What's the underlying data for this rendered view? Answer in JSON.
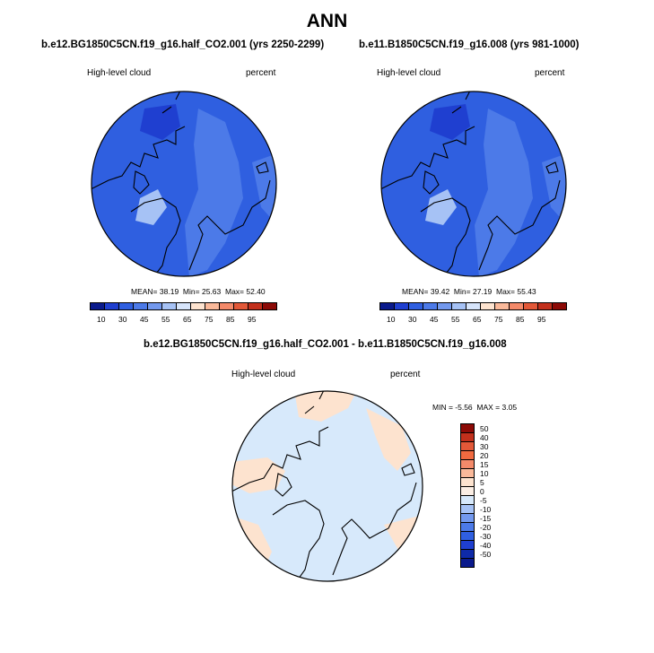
{
  "title": "ANN",
  "panels": [
    {
      "case": "b.e12.BG1850C5CN.f19_g16.half_CO2.001 (yrs 2250-2299)",
      "variable": "High-level cloud",
      "units": "percent",
      "stats": {
        "mean_label": "MEAN=",
        "mean": "38.19",
        "min_label": "Min=",
        "min": "25.63",
        "max_label": "Max=",
        "max": "52.40"
      },
      "colorbar": {
        "labels": [
          "10",
          "30",
          "45",
          "55",
          "65",
          "75",
          "85",
          "95"
        ],
        "colors": [
          "#0a1a8c",
          "#1f3fd0",
          "#2f5fe0",
          "#4c7ae8",
          "#7399ee",
          "#a6c2f5",
          "#d7e5fb",
          "#fde3cf",
          "#fab99a",
          "#f48a6a",
          "#e25838",
          "#c2301c",
          "#8c0a06"
        ]
      },
      "map": {
        "base": "#2f5fe0",
        "lighter": "#4c7ae8",
        "lightest": "#a6c2f5"
      }
    },
    {
      "case": "b.e11.B1850C5CN.f19_g16.008 (yrs 981-1000)",
      "variable": "High-level cloud",
      "units": "percent",
      "stats": {
        "mean_label": "MEAN=",
        "mean": "39.42",
        "min_label": "Min=",
        "min": "27.19",
        "max_label": "Max=",
        "max": "55.43"
      },
      "colorbar": {
        "labels": [
          "10",
          "30",
          "45",
          "55",
          "65",
          "75",
          "85",
          "95"
        ],
        "colors": [
          "#0a1a8c",
          "#1f3fd0",
          "#2f5fe0",
          "#4c7ae8",
          "#7399ee",
          "#a6c2f5",
          "#d7e5fb",
          "#fde3cf",
          "#fab99a",
          "#f48a6a",
          "#e25838",
          "#c2301c",
          "#8c0a06"
        ]
      },
      "map": {
        "base": "#2f5fe0",
        "lighter": "#4c7ae8",
        "lightest": "#a6c2f5"
      }
    }
  ],
  "difference": {
    "case": "b.e12.BG1850C5CN.f19_g16.half_CO2.001 - b.e11.B1850C5CN.f19_g16.008",
    "variable": "High-level cloud",
    "units": "percent",
    "stats": {
      "min_label": "MIN =",
      "min": "-5.56",
      "max_label": "MAX =",
      "max": "3.05"
    },
    "colorbar": {
      "labels": [
        "50",
        "40",
        "30",
        "20",
        "15",
        "10",
        "5",
        "0",
        "-5",
        "-10",
        "-15",
        "-20",
        "-30",
        "-40",
        "-50"
      ],
      "colors": [
        "#8c0a06",
        "#c2301c",
        "#e25838",
        "#f06a40",
        "#f48a6a",
        "#fab99a",
        "#fde3cf",
        "#fbeee4",
        "#d7e9fb",
        "#a6c2f5",
        "#7399ee",
        "#4c7ae8",
        "#2f5fe0",
        "#1f3fd0",
        "#0e2aa8",
        "#0a1a8c"
      ]
    },
    "map": {
      "base": "#d7e9fb",
      "warm": "#fde3cf"
    }
  }
}
